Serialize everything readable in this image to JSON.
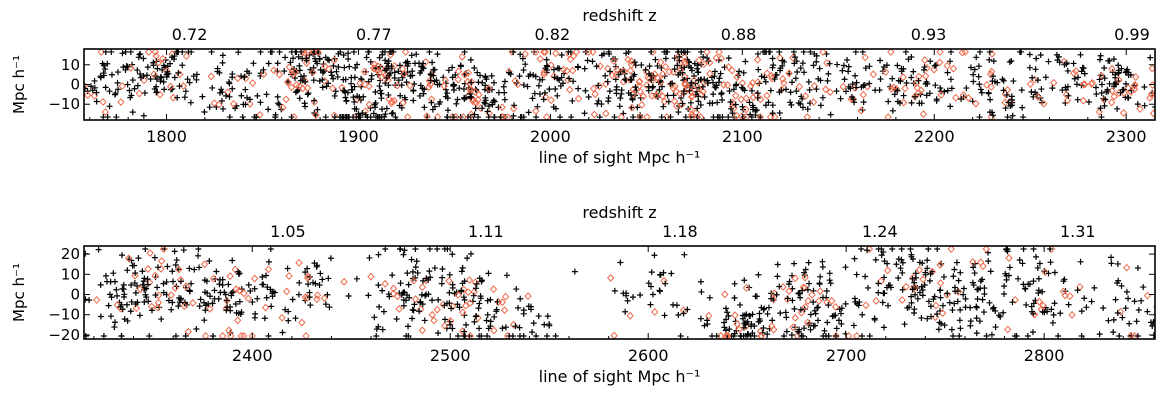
{
  "colors": {
    "plus_marker": "#000000",
    "diamond_marker": "#ee6a4a"
  },
  "chart_data": [
    {
      "type": "scatter",
      "title": "",
      "xlabel": "line of sight Mpc h⁻¹",
      "ylabel": "Mpc h⁻¹",
      "top_axis_label": "redshift z",
      "xlim": [
        1757,
        2315
      ],
      "ylim": [
        -18,
        18
      ],
      "grid": false,
      "x_ticks": [
        1800,
        1900,
        2000,
        2100,
        2200,
        2300
      ],
      "x_tick_labels": [
        "1800",
        "1900",
        "2000",
        "2100",
        "2200",
        "2300"
      ],
      "y_ticks": [
        10,
        0,
        -10
      ],
      "y_tick_labels": [
        "10",
        "0",
        "−10"
      ],
      "top_ticks": [
        1812,
        1908,
        2001,
        2098,
        2197,
        2303
      ],
      "top_tick_labels": [
        "0.72",
        "0.77",
        "0.82",
        "0.88",
        "0.93",
        "0.99"
      ],
      "markers": [
        "plus",
        "diamond"
      ],
      "clusters": [
        [
          1770,
          2,
          12,
          60,
          0.15
        ],
        [
          1798,
          6,
          12,
          80,
          0.2
        ],
        [
          1838,
          -4,
          12,
          60,
          0.15
        ],
        [
          1870,
          6,
          14,
          130,
          0.25
        ],
        [
          1900,
          -10,
          12,
          90,
          0.15
        ],
        [
          1914,
          8,
          10,
          70,
          0.3
        ],
        [
          1936,
          0,
          12,
          70,
          0.2
        ],
        [
          1962,
          -6,
          12,
          110,
          0.3
        ],
        [
          2000,
          4,
          14,
          90,
          0.25
        ],
        [
          2040,
          0,
          14,
          120,
          0.3
        ],
        [
          2074,
          2,
          14,
          160,
          0.35
        ],
        [
          2100,
          -8,
          12,
          80,
          0.25
        ],
        [
          2128,
          4,
          12,
          70,
          0.2
        ],
        [
          2158,
          0,
          12,
          60,
          0.2
        ],
        [
          2196,
          2,
          14,
          80,
          0.3
        ],
        [
          2234,
          -4,
          12,
          60,
          0.2
        ],
        [
          2268,
          2,
          12,
          60,
          0.25
        ],
        [
          2298,
          -2,
          12,
          80,
          0.35
        ]
      ]
    },
    {
      "type": "scatter",
      "title": "",
      "xlabel": "line of sight Mpc h⁻¹",
      "ylabel": "Mpc h⁻¹",
      "top_axis_label": "redshift z",
      "xlim": [
        2315,
        2856
      ],
      "ylim": [
        -22,
        24
      ],
      "grid": false,
      "x_ticks": [
        2400,
        2500,
        2600,
        2700,
        2800
      ],
      "x_tick_labels": [
        "2400",
        "2500",
        "2600",
        "2700",
        "2800"
      ],
      "y_ticks": [
        20,
        10,
        0,
        -10,
        -20
      ],
      "y_tick_labels": [
        "20",
        "10",
        "0",
        "−10",
        "−20"
      ],
      "top_ticks": [
        2418,
        2518,
        2616,
        2717,
        2817
      ],
      "top_tick_labels": [
        "1.05",
        "1.11",
        "1.18",
        "1.24",
        "1.31"
      ],
      "markers": [
        "plus",
        "diamond"
      ],
      "clusters": [
        [
          2335,
          2,
          14,
          70,
          0.2
        ],
        [
          2360,
          4,
          14,
          80,
          0.2
        ],
        [
          2392,
          -4,
          16,
          90,
          0.25
        ],
        [
          2430,
          6,
          12,
          40,
          0.15
        ],
        [
          2470,
          -6,
          14,
          40,
          0.15
        ],
        [
          2492,
          4,
          14,
          80,
          0.2
        ],
        [
          2515,
          -8,
          14,
          70,
          0.25
        ],
        [
          2545,
          -16,
          10,
          20,
          0.1
        ],
        [
          2600,
          2,
          14,
          40,
          0.2
        ],
        [
          2648,
          -14,
          10,
          70,
          0.2
        ],
        [
          2672,
          -4,
          16,
          80,
          0.25
        ],
        [
          2692,
          -10,
          12,
          50,
          0.2
        ],
        [
          2728,
          6,
          16,
          90,
          0.15
        ],
        [
          2762,
          2,
          16,
          100,
          0.15
        ],
        [
          2800,
          2,
          16,
          70,
          0.15
        ],
        [
          2845,
          -10,
          12,
          40,
          0.2
        ]
      ]
    }
  ]
}
